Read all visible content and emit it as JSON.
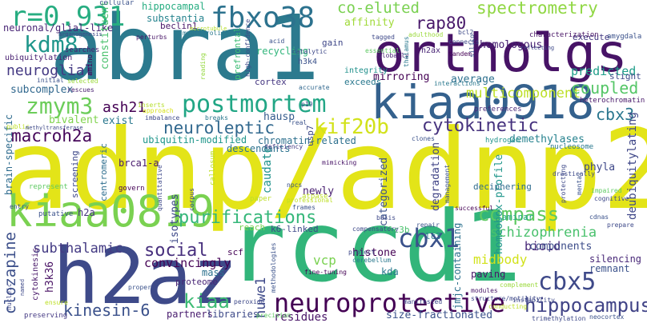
{
  "cloud": {
    "words": [
      {
        "text": "adnp/adnp2",
        "color": "#e3e418"
      },
      {
        "text": "abra1",
        "color": "#2c7a8e"
      },
      {
        "text": "rccd1",
        "color": "#32b57a"
      },
      {
        "text": "h2az",
        "color": "#3e4a89"
      },
      {
        "text": "ortholgs",
        "color": "#471366"
      },
      {
        "text": "kiaa0918",
        "color": "#34618d"
      },
      {
        "text": "kiaa0819",
        "color": "#7ad151"
      },
      {
        "text": "postmortem",
        "color": "#21a685"
      },
      {
        "text": "neuroprotective",
        "color": "#440154"
      },
      {
        "text": "fbxo38",
        "color": "#2c728e"
      },
      {
        "text": "r=0.931",
        "color": "#27ad81"
      },
      {
        "text": "kdm8",
        "color": "#1f968b"
      },
      {
        "text": "zmym3",
        "color": "#6ccd5a"
      },
      {
        "text": "kif20b",
        "color": "#d2e21b"
      },
      {
        "text": "cbx1",
        "color": "#3b528b"
      },
      {
        "text": "cbx5",
        "color": "#3e4989"
      },
      {
        "text": "hippocampus",
        "color": "#414487"
      },
      {
        "text": "purifications",
        "color": "#35b779"
      },
      {
        "text": "compass",
        "color": "#5ec962"
      },
      {
        "text": "spectrometry",
        "color": "#90d743"
      },
      {
        "text": "cytokinetic",
        "color": "#46327e"
      },
      {
        "text": "rap80",
        "color": "#48186a"
      },
      {
        "text": "neuroleptic",
        "color": "#31688e"
      },
      {
        "text": "macroh2a",
        "color": "#450559"
      },
      {
        "text": "social",
        "color": "#472f7d"
      },
      {
        "text": "schizophrenia",
        "color": "#4ac16d"
      },
      {
        "text": "kinesin-6",
        "color": "#3b518b"
      },
      {
        "text": "kiaa",
        "color": "#3dbc74"
      },
      {
        "text": "co-eluted",
        "color": "#7ad151"
      },
      {
        "text": "multicomponent",
        "color": "#bddf26"
      },
      {
        "text": "coupled",
        "color": "#55c667"
      },
      {
        "text": "cbx3",
        "color": "#2a768e"
      },
      {
        "text": "neuroglial",
        "color": "#443983"
      },
      {
        "text": "ash21",
        "color": "#440154"
      },
      {
        "text": "subthalamic",
        "color": "#443b84"
      },
      {
        "text": "clozapine",
        "color": "#3c4f8a"
      },
      {
        "text": "huwe1",
        "color": "#3e4989"
      },
      {
        "text": "midbody",
        "color": "#d2e21b"
      },
      {
        "text": "bioid",
        "color": "#482878"
      },
      {
        "text": "vcp",
        "color": "#7ad151"
      },
      {
        "text": "hippocampal",
        "color": "#26ad81"
      },
      {
        "text": "substantia",
        "color": "#25838e"
      },
      {
        "text": "neuronal/glial-like",
        "color": "#482575"
      },
      {
        "text": "subcomplex",
        "color": "#31688e"
      },
      {
        "text": "bivalent",
        "color": "#7fd34e"
      },
      {
        "text": "homologous",
        "color": "#482173"
      },
      {
        "text": "predicted",
        "color": "#1f9e89"
      },
      {
        "text": "average",
        "color": "#2d708e"
      },
      {
        "text": "mirroring",
        "color": "#440154"
      },
      {
        "text": "affinity",
        "color": "#a0da39"
      },
      {
        "text": "deubiquitylating",
        "color": "#3f4788"
      },
      {
        "text": "demethylases",
        "color": "#26828e"
      },
      {
        "text": "chromatin-related",
        "color": "#2d708e"
      },
      {
        "text": "ubiquitin-modified",
        "color": "#1f968b"
      },
      {
        "text": "descendants",
        "color": "#2c728e"
      },
      {
        "text": "caudate",
        "color": "#20928c"
      },
      {
        "text": "newly",
        "color": "#481f70"
      },
      {
        "text": "categorized",
        "color": "#3b528b"
      },
      {
        "text": "degradation",
        "color": "#414487"
      },
      {
        "text": "homeobox-profile",
        "color": "#1f968b"
      },
      {
        "text": "phyla",
        "color": "#3f4889"
      },
      {
        "text": "exist",
        "color": "#2a788e"
      },
      {
        "text": "hausp",
        "color": "#365c8d"
      },
      {
        "text": "beclin1",
        "color": "#481668"
      },
      {
        "text": "recycling",
        "color": "#31b57b"
      },
      {
        "text": "gain",
        "color": "#3f4788"
      },
      {
        "text": "cortex",
        "color": "#453781"
      },
      {
        "text": "exceeds",
        "color": "#2a788e"
      },
      {
        "text": "integrity",
        "color": "#21918c"
      },
      {
        "text": "h3k4",
        "color": "#3b528b"
      },
      {
        "text": "h2ax",
        "color": "#482475"
      },
      {
        "text": "constituents",
        "color": "#4ac16d"
      },
      {
        "text": "brca1-a",
        "color": "#481b6d"
      },
      {
        "text": "isotypes",
        "color": "#3e4989"
      },
      {
        "text": "convincingly",
        "color": "#440154"
      },
      {
        "text": "h2a",
        "color": "#46337f"
      },
      {
        "text": "proteome",
        "color": "#482576"
      },
      {
        "text": "mass",
        "color": "#2c728e"
      },
      {
        "text": "partners",
        "color": "#481c6e"
      },
      {
        "text": "libraries",
        "color": "#3e4a89"
      },
      {
        "text": "residues",
        "color": "#481467"
      },
      {
        "text": "size-fractionated",
        "color": "#3b528b"
      },
      {
        "text": "histone",
        "color": "#440154"
      },
      {
        "text": "kda",
        "color": "#2a788e"
      },
      {
        "text": "jmjc-containing",
        "color": "#2c718e"
      },
      {
        "text": "components",
        "color": "#3d4d8a"
      },
      {
        "text": "paving",
        "color": "#481769"
      },
      {
        "text": "silencing",
        "color": "#482878"
      },
      {
        "text": "remnant",
        "color": "#3b528b"
      },
      {
        "text": "reach",
        "color": "#7ad151"
      },
      {
        "text": "k6-linked",
        "color": "#3e4989"
      },
      {
        "text": "lc3b",
        "color": "#4ac16d"
      },
      {
        "text": "lc3",
        "color": "#2a788e"
      },
      {
        "text": "scf",
        "color": "#440154"
      },
      {
        "text": "h3k36",
        "color": "#471063"
      },
      {
        "text": "brain-specific",
        "color": "#2f6c8e"
      },
      {
        "text": "centromeric",
        "color": "#2e6e8e"
      },
      {
        "text": "screening",
        "color": "#3e4989"
      },
      {
        "text": "usp7",
        "color": "#3e4a89"
      },
      {
        "text": "prefrontal",
        "color": "#3dbc74"
      },
      {
        "text": "ubiquitylation",
        "color": "#482071"
      },
      {
        "text": "cytokinesis",
        "color": "#481769"
      },
      {
        "text": "deciphering",
        "color": "#2f6c8e"
      },
      {
        "text": "laminar",
        "color": "#22a785"
      },
      {
        "text": "cellular",
        "color": "#3b528b"
      },
      {
        "text": "hydrogen",
        "color": "#20938c"
      },
      {
        "text": "nucleosome",
        "color": "#2a788e"
      },
      {
        "text": "heterochromatin",
        "color": "#481769"
      },
      {
        "text": "preferences",
        "color": "#482878"
      },
      {
        "text": "slight",
        "color": "#3f4788"
      },
      {
        "text": "execute",
        "color": "#443a83"
      },
      {
        "text": "characterization",
        "color": "#471365"
      },
      {
        "text": "amygdala",
        "color": "#3b528b"
      },
      {
        "text": "connects",
        "color": "#3e4989"
      },
      {
        "text": "bcl2",
        "color": "#3e4989"
      },
      {
        "text": "adulthood",
        "color": "#9bd93c"
      },
      {
        "text": "tagged",
        "color": "#3e4989"
      },
      {
        "text": "perturbs",
        "color": "#481567"
      },
      {
        "text": "myeloproliferative",
        "color": "#2a788e"
      },
      {
        "text": "microtubule",
        "color": "#b5de2b"
      },
      {
        "text": "catalytic",
        "color": "#3e4989"
      },
      {
        "text": "acid",
        "color": "#3b528b"
      },
      {
        "text": "essential",
        "color": "#5ec962"
      },
      {
        "text": "globally",
        "color": "#482475"
      },
      {
        "text": "searches",
        "color": "#481c6e"
      },
      {
        "text": "amino",
        "color": "#440154"
      },
      {
        "text": "reading",
        "color": "#95d840"
      },
      {
        "text": "high-confidence",
        "color": "#3e4989"
      },
      {
        "text": "accurate",
        "color": "#31688e"
      },
      {
        "text": "inserts",
        "color": "#b5de2b"
      },
      {
        "text": "approach",
        "color": "#d8e219"
      },
      {
        "text": "imbalance",
        "color": "#3e4989"
      },
      {
        "text": "breaks",
        "color": "#2a788e"
      },
      {
        "text": "real",
        "color": "#3b528b"
      },
      {
        "text": "deficiency",
        "color": "#443a83"
      },
      {
        "text": "mimicking",
        "color": "#481467"
      },
      {
        "text": "paper",
        "color": "#bddf26"
      },
      {
        "text": "atpase",
        "color": "#bddf26"
      },
      {
        "text": "nucleic",
        "color": "#3e4989"
      },
      {
        "text": "preserving",
        "color": "#443983"
      },
      {
        "text": "putative",
        "color": "#3b528b"
      },
      {
        "text": "govern",
        "color": "#440154"
      },
      {
        "text": "represent",
        "color": "#5ec962"
      },
      {
        "text": "entry",
        "color": "#3b528b"
      },
      {
        "text": "public",
        "color": "#bddf26"
      },
      {
        "text": "methyltransferase",
        "color": "#3e4989"
      },
      {
        "text": "selected",
        "color": "#9bd93c"
      },
      {
        "text": "initial",
        "color": "#3b528b"
      },
      {
        "text": "rescues",
        "color": "#482071"
      },
      {
        "text": "arganogenesis",
        "color": "#3e4989"
      },
      {
        "text": "interactions",
        "color": "#2a788e"
      },
      {
        "text": "tandem",
        "color": "#440154"
      },
      {
        "text": "thalamus",
        "color": "#2a788e"
      },
      {
        "text": "silico",
        "color": "#3b528b"
      },
      {
        "text": "reflecting",
        "color": "#3e4989"
      },
      {
        "text": "p19",
        "color": "#3e4989"
      },
      {
        "text": "professional",
        "color": "#bddf26"
      },
      {
        "text": "frames",
        "color": "#3b528b"
      },
      {
        "text": "corpus",
        "color": "#3e4989"
      },
      {
        "text": "callosum",
        "color": "#bddf26"
      },
      {
        "text": "quantitative",
        "color": "#3e4989"
      },
      {
        "text": "npcs",
        "color": "#3b528b"
      },
      {
        "text": "modules",
        "color": "#481769"
      },
      {
        "text": "structure/motility",
        "color": "#3e4989"
      },
      {
        "text": "conducting",
        "color": "#bddf26"
      },
      {
        "text": "instability",
        "color": "#3e4989"
      },
      {
        "text": "complement",
        "color": "#9bd93c"
      },
      {
        "text": "neocortex",
        "color": "#3b528b"
      },
      {
        "text": "trimethylation",
        "color": "#3e4989"
      },
      {
        "text": "manifested",
        "color": "#3e4989"
      },
      {
        "text": "precision",
        "color": "#5ec962"
      },
      {
        "text": "peroxide",
        "color": "#3e4989"
      },
      {
        "text": "proper",
        "color": "#3b528b"
      },
      {
        "text": "fine-tuning",
        "color": "#440154"
      },
      {
        "text": "cerebellum",
        "color": "#2a788e"
      },
      {
        "text": "project",
        "color": "#3e4989"
      },
      {
        "text": "methodologies",
        "color": "#3b528b"
      },
      {
        "text": "ensure",
        "color": "#bddf26"
      },
      {
        "text": "compensatory",
        "color": "#3e4989"
      },
      {
        "text": "repair",
        "color": "#3b528b"
      },
      {
        "text": "basis",
        "color": "#3e4989"
      },
      {
        "text": "successful",
        "color": "#440154"
      },
      {
        "text": "drastically",
        "color": "#3e4989"
      },
      {
        "text": "management",
        "color": "#3b528b"
      },
      {
        "text": "protecting",
        "color": "#3e4989"
      },
      {
        "text": "mental",
        "color": "#3b528b"
      },
      {
        "text": "impaired",
        "color": "#5ec962"
      },
      {
        "text": "cognitive",
        "color": "#3e4989"
      },
      {
        "text": "cdnas",
        "color": "#3b528b"
      },
      {
        "text": "prepare",
        "color": "#3e4989"
      },
      {
        "text": "clones",
        "color": "#3b528b"
      },
      {
        "text": "named",
        "color": "#3e4989"
      }
    ]
  }
}
